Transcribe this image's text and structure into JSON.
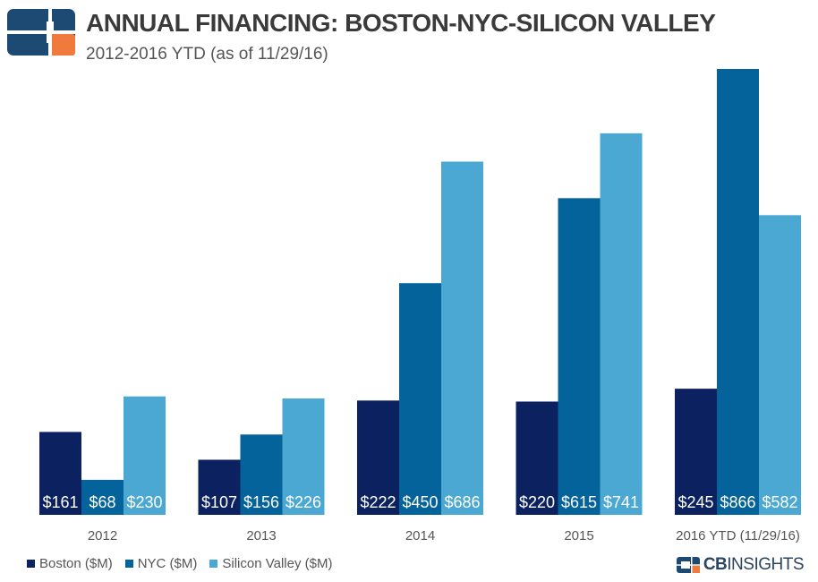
{
  "header": {
    "title": "ANNUAL FINANCING: BOSTON-NYC-SILICON VALLEY",
    "subtitle": "2012-2016 YTD (as of 11/29/16)"
  },
  "brand": {
    "prefix": "CB",
    "suffix": "INSIGHTS"
  },
  "colors": {
    "boston": "#0b2160",
    "nyc": "#03639a",
    "silicon_valley": "#4aa8d2",
    "logo_orange": "#f07a3d",
    "logo_navy": "#1d4a73"
  },
  "chart_data": {
    "type": "bar",
    "categories": [
      "2012",
      "2013",
      "2014",
      "2015",
      "2016 YTD (11/29/16)"
    ],
    "series": [
      {
        "name": "Boston ($M)",
        "values": [
          161,
          107,
          222,
          220,
          245
        ],
        "labels": [
          "$161",
          "$107",
          "$222",
          "$220",
          "$245"
        ]
      },
      {
        "name": "NYC ($M)",
        "values": [
          68,
          156,
          450,
          615,
          866
        ],
        "labels": [
          "$68",
          "$156",
          "$450",
          "$615",
          "$866"
        ]
      },
      {
        "name": "Silicon Valley ($M)",
        "values": [
          230,
          226,
          686,
          741,
          582
        ],
        "labels": [
          "$230",
          "$226",
          "$686",
          "$741",
          "$582"
        ]
      }
    ],
    "ylim": [
      0,
      866
    ],
    "grid": false,
    "legend": "bottom-left"
  }
}
